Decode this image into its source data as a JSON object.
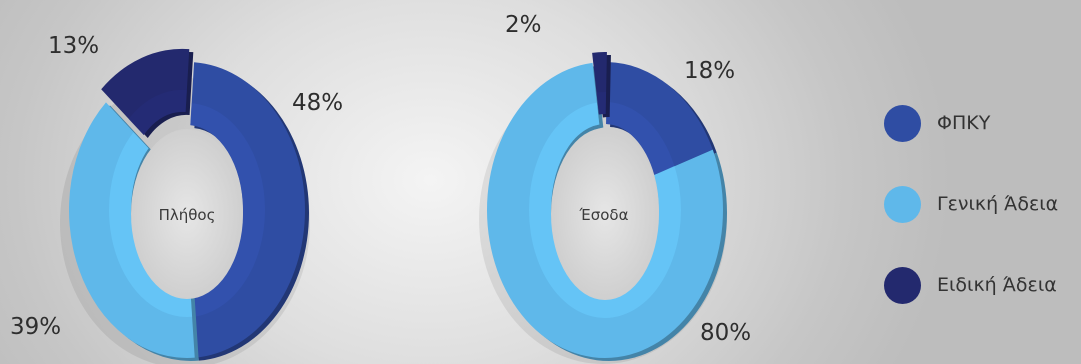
{
  "colors": {
    "fpky": "#2f4da3",
    "geniki": "#5fb8ea",
    "eidiki": "#23296e"
  },
  "chart_data": [
    {
      "type": "pie",
      "center_label": "Πλήθος",
      "slices": [
        {
          "name": "ΦΠΚΥ",
          "value": 48,
          "label": "48%"
        },
        {
          "name": "Γενική Άδεια",
          "value": 39,
          "label": "39%"
        },
        {
          "name": "Ειδική Άδεια",
          "value": 13,
          "label": "13%"
        }
      ]
    },
    {
      "type": "pie",
      "center_label": "Έσοδα",
      "slices": [
        {
          "name": "ΦΠΚΥ",
          "value": 18,
          "label": "18%"
        },
        {
          "name": "Γενική Άδεια",
          "value": 80,
          "label": "80%"
        },
        {
          "name": "Ειδική Άδεια",
          "value": 2,
          "label": "2%"
        }
      ]
    }
  ],
  "legend": [
    {
      "label": "ΦΠΚΥ",
      "color_key": "fpky"
    },
    {
      "label": "Γενική Άδεια",
      "color_key": "geniki"
    },
    {
      "label": "Ειδική Άδεια",
      "color_key": "eidiki"
    }
  ]
}
